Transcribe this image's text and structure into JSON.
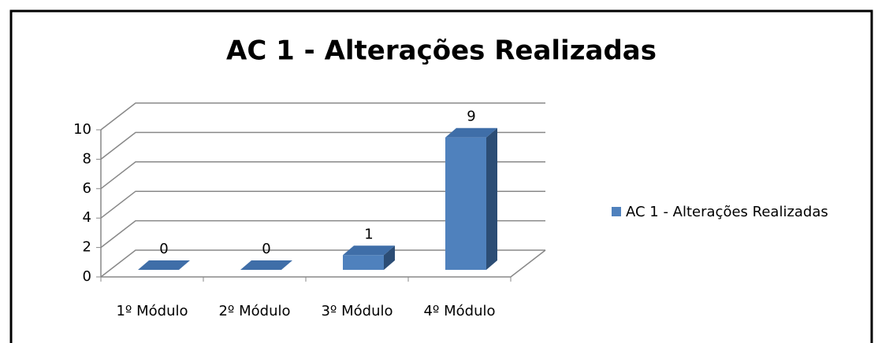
{
  "chart_data": {
    "type": "bar3d",
    "title": "AC 1 - Alterações Realizadas",
    "categories": [
      "1º Módulo",
      "2º Módulo",
      "3º Módulo",
      "4º Módulo"
    ],
    "series": [
      {
        "name": "AC 1 - Alterações Realizadas",
        "color": "#4f81bd",
        "values": [
          0,
          0,
          1,
          9
        ]
      }
    ],
    "ylim": [
      0,
      10
    ],
    "yticks": [
      0,
      2,
      4,
      6,
      8,
      10
    ],
    "grid": true,
    "legend": "right"
  }
}
